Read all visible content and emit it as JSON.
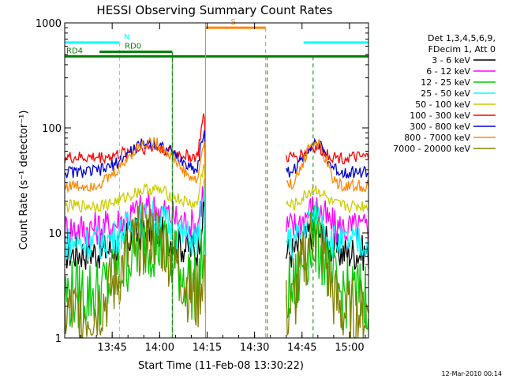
{
  "chart_data": {
    "type": "line",
    "title": "HESSI Observing Summary Count Rates",
    "xlabel": "Start Time (11-Feb-08 13:30:22)",
    "ylabel": "Count Rate (s⁻¹ detector⁻¹)",
    "x_range_minutes": [
      0,
      96
    ],
    "ylim": [
      1,
      1000
    ],
    "y_scale": "log",
    "x_ticks": [
      {
        "m": 15,
        "label": "13:45"
      },
      {
        "m": 30,
        "label": "14:00"
      },
      {
        "m": 45,
        "label": "14:15"
      },
      {
        "m": 60,
        "label": "14:30"
      },
      {
        "m": 75,
        "label": "14:45"
      },
      {
        "m": 90,
        "label": "15:00"
      }
    ],
    "y_ticks": [
      {
        "v": 1,
        "label": "1"
      },
      {
        "v": 10,
        "label": "10"
      },
      {
        "v": 100,
        "label": "100"
      },
      {
        "v": 1000,
        "label": "1000"
      }
    ],
    "legend_header": [
      "Det 1,3,4,5,6,9,",
      "FDecim 1, Att 0"
    ],
    "legend_placement": "right",
    "series": [
      {
        "name": "3 - 6 keV",
        "color": "#000000",
        "base": 6.5,
        "amp": 1.6
      },
      {
        "name": "6 - 12 keV",
        "color": "#ff00ff",
        "base": 11,
        "amp": 1.55
      },
      {
        "name": "12 - 25 keV",
        "color": "#00cc00",
        "base": 2.6,
        "amp": 3.2
      },
      {
        "name": "25 - 50 keV",
        "color": "#00ffff",
        "base": 8,
        "amp": 1.75
      },
      {
        "name": "50 - 100 keV",
        "color": "#cccc00",
        "base": 18,
        "amp": 1.45
      },
      {
        "name": "100 - 300 keV",
        "color": "#ff0000",
        "base": 52,
        "amp": 1.25
      },
      {
        "name": "300 - 800 keV",
        "color": "#0000cc",
        "base": 38,
        "amp": 1.9
      },
      {
        "name": "800 - 7000 keV",
        "color": "#ff8800",
        "base": 28,
        "amp": 2.6
      },
      {
        "name": "7000 - 20000 keV",
        "color": "#808000",
        "base": 1.7,
        "amp": 5.5
      }
    ],
    "data_gap_minutes": [
      44.5,
      70
    ],
    "flags": [
      {
        "label": "N",
        "color": "#00ffff",
        "segments": [
          [
            0,
            17.3
          ],
          [
            75.5,
            96
          ]
        ],
        "level": 650
      },
      {
        "label": "S",
        "color": "#ff8800",
        "segments": [
          [
            44.5,
            63.5
          ]
        ],
        "level": 900
      },
      {
        "label": "RD0",
        "color": "#008000",
        "segments": [
          [
            11,
            34
          ]
        ],
        "level": 530
      },
      {
        "label": "RD4",
        "color": "#008000",
        "segments": [
          [
            0,
            34
          ],
          [
            34,
            64
          ],
          [
            64,
            78.5
          ],
          [
            78.5,
            96
          ]
        ],
        "level": 480
      }
    ],
    "timestamp": "12-Mar-2010 00:14"
  }
}
